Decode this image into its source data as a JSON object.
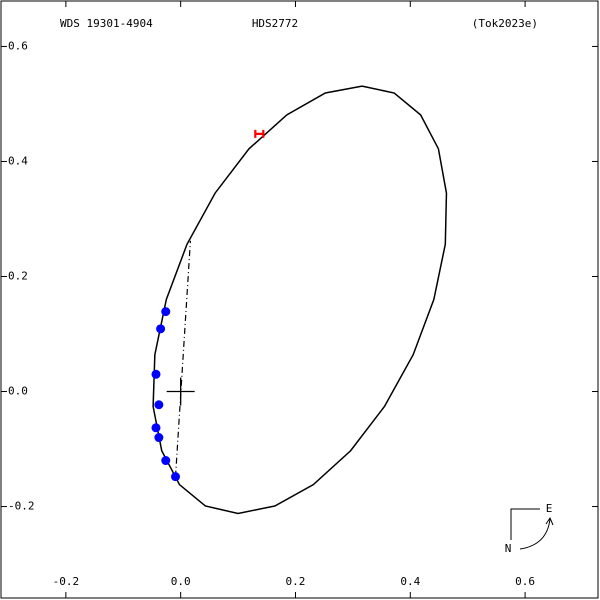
{
  "chart_data": {
    "type": "scatter",
    "title": "HDS2772",
    "annotations": [
      "WDS 19301-4904",
      "(Tok2023e)"
    ],
    "compass": {
      "east": "E",
      "north": "N"
    },
    "xlim": [
      -0.313,
      0.727
    ],
    "ylim": [
      -0.359,
      0.679
    ],
    "xticks": [
      -0.2,
      {
        "value": 0,
        "label": "0.0"
      },
      0.2,
      0.4,
      0.6
    ],
    "yticks": [
      -0.2,
      {
        "value": 0,
        "label": "0.0"
      },
      0.2,
      0.4,
      0.6
    ],
    "series": [
      {
        "marker": "line",
        "style": "solid",
        "color": "#000000",
        "x": [
          0.316,
          0.372,
          0.418,
          0.449,
          0.463,
          0.461,
          0.441,
          0.405,
          0.355,
          0.296,
          0.231,
          0.164,
          0.1,
          0.043,
          -0.002,
          -0.033,
          -0.048,
          -0.045,
          -0.025,
          0.011,
          0.06,
          0.119,
          0.185,
          0.252,
          0.316
        ],
        "y": [
          0.531,
          0.519,
          0.481,
          0.422,
          0.345,
          0.256,
          0.16,
          0.064,
          -0.026,
          -0.103,
          -0.162,
          -0.199,
          -0.212,
          -0.199,
          -0.162,
          -0.103,
          -0.026,
          0.064,
          0.16,
          0.256,
          0.345,
          0.422,
          0.481,
          0.519,
          0.531
        ]
      },
      {
        "marker": "line",
        "style": "dashdot",
        "color": "#000000",
        "x": [
          -0.009,
          0.017
        ],
        "y": [
          -0.148,
          0.262
        ]
      },
      {
        "marker": "circle",
        "color": "#0000ff",
        "x": [
          -0.026,
          -0.035,
          -0.043,
          -0.038,
          -0.043,
          -0.038,
          -0.026,
          -0.009
        ],
        "y": [
          0.139,
          0.109,
          0.03,
          -0.023,
          -0.063,
          -0.08,
          -0.12,
          -0.148
        ]
      },
      {
        "marker": "H",
        "color": "#ff0000",
        "x": [
          0.137
        ],
        "y": [
          0.448
        ]
      }
    ]
  }
}
